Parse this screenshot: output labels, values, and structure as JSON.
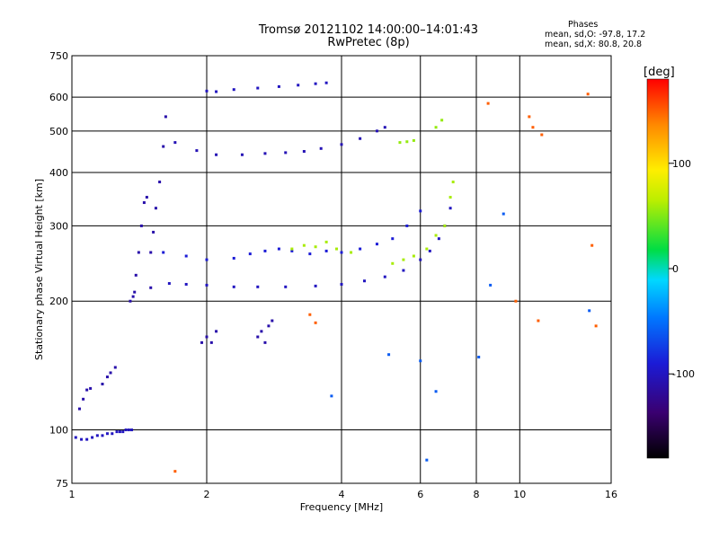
{
  "header": {
    "title": "Tromsø 20121102 14:00:00–14:01:43",
    "subtitle": "RwPretec (8p)"
  },
  "info": {
    "heading": "Phases",
    "line1": "mean, sd,O: -97.8, 17.2",
    "line2": "mean, sd,X: 80.8, 20.8"
  },
  "colorbar": {
    "unit": "[deg]",
    "range": [
      -180,
      180
    ],
    "ticks": [
      "100",
      "0",
      "-100"
    ],
    "tick_values": [
      100,
      0,
      -100
    ]
  },
  "chart_data": {
    "type": "scatter",
    "xlabel": "Frequency [MHz]",
    "ylabel": "Stationary phase Virtual Height [km]",
    "x_scale": "log",
    "y_scale": "log",
    "xlim": [
      1,
      16
    ],
    "ylim": [
      75,
      750
    ],
    "grid": true,
    "x_ticks": [
      1,
      2,
      4,
      6,
      8,
      10,
      16
    ],
    "x_tick_labels": [
      "1",
      "2",
      "4",
      "6",
      "8",
      "10",
      "16"
    ],
    "y_ticks": [
      75,
      100,
      200,
      300,
      400,
      500,
      600,
      750
    ],
    "y_tick_labels": [
      "75",
      "100",
      "200",
      "300",
      "400",
      "500",
      "600",
      "750"
    ],
    "color_scale": "phase [deg]",
    "series": [
      {
        "points": [
          [
            1.02,
            96
          ],
          [
            1.05,
            95
          ],
          [
            1.08,
            95
          ],
          [
            1.11,
            96
          ],
          [
            1.14,
            97
          ],
          [
            1.17,
            97
          ],
          [
            1.2,
            98
          ],
          [
            1.23,
            98
          ],
          [
            1.26,
            99
          ],
          [
            1.28,
            99
          ],
          [
            1.3,
            99
          ],
          [
            1.32,
            100
          ],
          [
            1.34,
            100
          ],
          [
            1.36,
            100
          ]
        ],
        "color": -100
      },
      {
        "points": [
          [
            1.04,
            112
          ],
          [
            1.06,
            118
          ],
          [
            1.08,
            124
          ],
          [
            1.1,
            125
          ],
          [
            1.17,
            128
          ],
          [
            1.2,
            133
          ],
          [
            1.22,
            136
          ],
          [
            1.25,
            140
          ]
        ],
        "color": -110
      },
      {
        "points": [
          [
            1.35,
            200
          ],
          [
            1.37,
            205
          ],
          [
            1.38,
            210
          ],
          [
            1.39,
            230
          ],
          [
            1.41,
            260
          ],
          [
            1.43,
            300
          ],
          [
            1.45,
            340
          ],
          [
            1.47,
            350
          ],
          [
            1.5,
            215
          ],
          [
            1.5,
            260
          ],
          [
            1.52,
            290
          ],
          [
            1.54,
            330
          ],
          [
            1.57,
            380
          ],
          [
            1.6,
            460
          ],
          [
            1.62,
            540
          ]
        ],
        "color": -110
      },
      {
        "points": [
          [
            1.65,
            220
          ],
          [
            1.8,
            219
          ],
          [
            2.0,
            218
          ],
          [
            2.3,
            216
          ],
          [
            2.6,
            216
          ],
          [
            3.0,
            216
          ],
          [
            3.5,
            217
          ],
          [
            4.0,
            219
          ],
          [
            4.5,
            223
          ],
          [
            5.0,
            228
          ],
          [
            5.5,
            236
          ],
          [
            6.0,
            250
          ],
          [
            6.3,
            262
          ],
          [
            6.6,
            280
          ],
          [
            6.8,
            300
          ],
          [
            7.0,
            330
          ]
        ],
        "color": -100
      },
      {
        "points": [
          [
            1.6,
            260
          ],
          [
            1.8,
            255
          ],
          [
            2.0,
            250
          ],
          [
            2.3,
            252
          ],
          [
            2.5,
            258
          ],
          [
            2.7,
            262
          ],
          [
            2.9,
            265
          ],
          [
            3.1,
            262
          ],
          [
            3.4,
            258
          ],
          [
            3.7,
            262
          ],
          [
            4.0,
            260
          ],
          [
            4.4,
            265
          ],
          [
            4.8,
            272
          ],
          [
            5.2,
            280
          ],
          [
            5.6,
            300
          ],
          [
            6.0,
            325
          ]
        ],
        "color": -90
      },
      {
        "points": [
          [
            1.7,
            470
          ],
          [
            1.9,
            450
          ],
          [
            2.1,
            440
          ],
          [
            2.4,
            440
          ],
          [
            2.7,
            443
          ],
          [
            3.0,
            445
          ],
          [
            3.3,
            448
          ],
          [
            3.6,
            455
          ],
          [
            4.0,
            465
          ],
          [
            4.4,
            480
          ],
          [
            4.8,
            500
          ],
          [
            5.0,
            510
          ]
        ],
        "color": -105
      },
      {
        "points": [
          [
            2.0,
            620
          ],
          [
            2.1,
            618
          ],
          [
            2.3,
            625
          ],
          [
            2.6,
            630
          ],
          [
            2.9,
            635
          ],
          [
            3.2,
            640
          ],
          [
            3.5,
            645
          ],
          [
            3.7,
            648
          ]
        ],
        "color": -100
      },
      {
        "points": [
          [
            1.95,
            160
          ],
          [
            2.0,
            165
          ],
          [
            2.05,
            160
          ],
          [
            2.1,
            170
          ],
          [
            2.6,
            165
          ],
          [
            2.65,
            170
          ],
          [
            2.7,
            160
          ],
          [
            2.75,
            175
          ],
          [
            2.8,
            180
          ]
        ],
        "color": -110
      },
      {
        "points": [
          [
            3.1,
            265
          ],
          [
            3.3,
            270
          ],
          [
            3.5,
            268
          ],
          [
            3.7,
            275
          ],
          [
            3.9,
            265
          ],
          [
            4.2,
            260
          ],
          [
            5.2,
            245
          ],
          [
            5.5,
            250
          ],
          [
            5.8,
            255
          ],
          [
            6.2,
            265
          ],
          [
            6.5,
            285
          ],
          [
            6.8,
            300
          ],
          [
            7.0,
            350
          ],
          [
            7.1,
            380
          ]
        ],
        "color": 60
      },
      {
        "points": [
          [
            5.4,
            470
          ],
          [
            5.6,
            472
          ],
          [
            5.8,
            475
          ],
          [
            6.5,
            510
          ],
          [
            6.7,
            530
          ]
        ],
        "color": 55
      },
      {
        "points": [
          [
            8.5,
            580
          ],
          [
            9.8,
            200
          ],
          [
            10.5,
            540
          ],
          [
            10.7,
            510
          ],
          [
            11.2,
            490
          ],
          [
            11.0,
            180
          ],
          [
            14.2,
            610
          ],
          [
            14.5,
            270
          ],
          [
            14.8,
            175
          ],
          [
            1.7,
            80
          ],
          [
            3.4,
            186
          ],
          [
            3.5,
            178
          ]
        ],
        "color": 150
      },
      {
        "points": [
          [
            3.8,
            120
          ],
          [
            5.1,
            150
          ],
          [
            6.0,
            145
          ],
          [
            6.5,
            123
          ],
          [
            6.2,
            85
          ],
          [
            8.1,
            148
          ],
          [
            14.3,
            190
          ],
          [
            9.2,
            320
          ],
          [
            8.6,
            218
          ]
        ],
        "color": -60
      }
    ]
  }
}
